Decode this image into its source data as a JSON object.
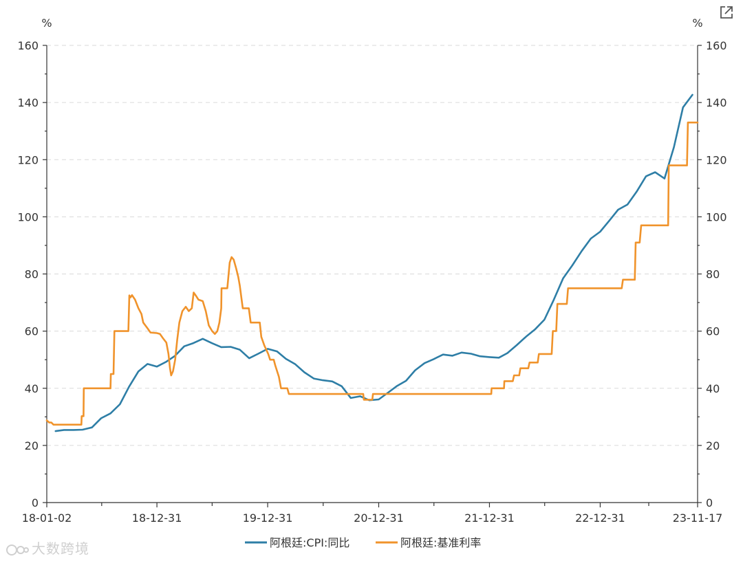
{
  "chart_data": {
    "type": "line",
    "title": "",
    "y_unit_left": "%",
    "y_unit_right": "%",
    "ylim": [
      0,
      160
    ],
    "yticks": [
      0,
      20,
      40,
      60,
      80,
      100,
      120,
      140,
      160
    ],
    "ytick_labels": [
      "0",
      "20",
      "40",
      "60",
      "80",
      "100",
      "120",
      "140",
      "160"
    ],
    "xlim": [
      "2018-01-02",
      "2023-11-17"
    ],
    "xticks": [
      "2018-01-02",
      "2018-12-31",
      "2019-12-31",
      "2020-12-31",
      "2021-12-31",
      "2022-12-31",
      "2023-11-17"
    ],
    "xtick_labels": [
      "18-01-02",
      "18-12-31",
      "19-12-31",
      "20-12-31",
      "21-12-31",
      "22-12-31",
      "23-11-17"
    ],
    "grid": true,
    "legend_position": "bottom",
    "series": [
      {
        "name": "阿根廷:CPI:同比",
        "color": "#2e7ea6",
        "points": [
          [
            "2018-01-31",
            25.0
          ],
          [
            "2018-02-28",
            25.4
          ],
          [
            "2018-03-31",
            25.4
          ],
          [
            "2018-04-30",
            25.5
          ],
          [
            "2018-05-31",
            26.3
          ],
          [
            "2018-06-30",
            29.5
          ],
          [
            "2018-07-31",
            31.2
          ],
          [
            "2018-08-31",
            34.4
          ],
          [
            "2018-09-30",
            40.5
          ],
          [
            "2018-10-31",
            45.9
          ],
          [
            "2018-11-30",
            48.5
          ],
          [
            "2018-12-31",
            47.6
          ],
          [
            "2019-01-31",
            49.3
          ],
          [
            "2019-02-28",
            51.3
          ],
          [
            "2019-03-31",
            54.7
          ],
          [
            "2019-04-30",
            55.8
          ],
          [
            "2019-05-31",
            57.3
          ],
          [
            "2019-06-30",
            55.8
          ],
          [
            "2019-07-31",
            54.4
          ],
          [
            "2019-08-31",
            54.5
          ],
          [
            "2019-09-30",
            53.5
          ],
          [
            "2019-10-31",
            50.5
          ],
          [
            "2019-11-30",
            52.1
          ],
          [
            "2019-12-31",
            53.8
          ],
          [
            "2020-01-31",
            52.9
          ],
          [
            "2020-02-29",
            50.3
          ],
          [
            "2020-03-31",
            48.4
          ],
          [
            "2020-04-30",
            45.6
          ],
          [
            "2020-05-31",
            43.4
          ],
          [
            "2020-06-30",
            42.8
          ],
          [
            "2020-07-31",
            42.4
          ],
          [
            "2020-08-31",
            40.7
          ],
          [
            "2020-09-30",
            36.6
          ],
          [
            "2020-10-31",
            37.2
          ],
          [
            "2020-11-30",
            35.8
          ],
          [
            "2020-12-31",
            36.1
          ],
          [
            "2021-01-31",
            38.5
          ],
          [
            "2021-02-28",
            40.7
          ],
          [
            "2021-03-31",
            42.6
          ],
          [
            "2021-04-30",
            46.3
          ],
          [
            "2021-05-31",
            48.8
          ],
          [
            "2021-06-30",
            50.2
          ],
          [
            "2021-07-31",
            51.8
          ],
          [
            "2021-08-31",
            51.4
          ],
          [
            "2021-09-30",
            52.5
          ],
          [
            "2021-10-31",
            52.1
          ],
          [
            "2021-11-30",
            51.2
          ],
          [
            "2021-12-31",
            50.9
          ],
          [
            "2022-01-31",
            50.7
          ],
          [
            "2022-02-28",
            52.3
          ],
          [
            "2022-03-31",
            55.1
          ],
          [
            "2022-04-30",
            58.0
          ],
          [
            "2022-05-31",
            60.7
          ],
          [
            "2022-06-30",
            64.0
          ],
          [
            "2022-07-31",
            71.0
          ],
          [
            "2022-08-31",
            78.5
          ],
          [
            "2022-09-30",
            83.0
          ],
          [
            "2022-10-31",
            88.0
          ],
          [
            "2022-11-30",
            92.4
          ],
          [
            "2022-12-31",
            94.8
          ],
          [
            "2023-01-31",
            98.8
          ],
          [
            "2023-02-28",
            102.5
          ],
          [
            "2023-03-31",
            104.3
          ],
          [
            "2023-04-30",
            108.8
          ],
          [
            "2023-05-31",
            114.2
          ],
          [
            "2023-06-30",
            115.6
          ],
          [
            "2023-07-31",
            113.4
          ],
          [
            "2023-08-31",
            124.4
          ],
          [
            "2023-09-30",
            138.3
          ],
          [
            "2023-10-31",
            142.7
          ]
        ]
      },
      {
        "name": "阿根廷:基准利率",
        "color": "#f0932b",
        "points": [
          [
            "2018-01-02",
            28.75
          ],
          [
            "2018-01-10",
            28.0
          ],
          [
            "2018-01-17",
            28.0
          ],
          [
            "2018-01-24",
            27.25
          ],
          [
            "2018-04-26",
            27.25
          ],
          [
            "2018-04-27",
            30.25
          ],
          [
            "2018-05-03",
            30.25
          ],
          [
            "2018-05-04",
            40.0
          ],
          [
            "2018-07-31",
            40.0
          ],
          [
            "2018-08-01",
            45.0
          ],
          [
            "2018-08-10",
            45.0
          ],
          [
            "2018-08-13",
            60.0
          ],
          [
            "2018-09-28",
            60.0
          ],
          [
            "2018-10-01",
            72.5
          ],
          [
            "2018-10-05",
            71.8
          ],
          [
            "2018-10-10",
            72.6
          ],
          [
            "2018-10-20",
            71.0
          ],
          [
            "2018-10-31",
            68.0
          ],
          [
            "2018-11-10",
            66.0
          ],
          [
            "2018-11-16",
            63.0
          ],
          [
            "2018-11-30",
            61.0
          ],
          [
            "2018-12-10",
            59.5
          ],
          [
            "2018-12-31",
            59.3
          ],
          [
            "2019-01-10",
            59.0
          ],
          [
            "2019-01-20",
            57.5
          ],
          [
            "2019-01-31",
            56.0
          ],
          [
            "2019-02-07",
            52.0
          ],
          [
            "2019-02-12",
            47.0
          ],
          [
            "2019-02-16",
            44.5
          ],
          [
            "2019-02-22",
            46.0
          ],
          [
            "2019-03-01",
            50.0
          ],
          [
            "2019-03-08",
            57.0
          ],
          [
            "2019-03-15",
            63.0
          ],
          [
            "2019-03-25",
            67.0
          ],
          [
            "2019-04-05",
            68.5
          ],
          [
            "2019-04-15",
            67.0
          ],
          [
            "2019-04-25",
            68.0
          ],
          [
            "2019-05-01",
            73.5
          ],
          [
            "2019-05-08",
            72.5
          ],
          [
            "2019-05-17",
            71.0
          ],
          [
            "2019-05-31",
            70.5
          ],
          [
            "2019-06-10",
            67.0
          ],
          [
            "2019-06-20",
            62.0
          ],
          [
            "2019-07-01",
            60.0
          ],
          [
            "2019-07-10",
            59.0
          ],
          [
            "2019-07-18",
            60.0
          ],
          [
            "2019-07-25",
            63.0
          ],
          [
            "2019-07-31",
            68.0
          ],
          [
            "2019-08-01",
            75.0
          ],
          [
            "2019-08-20",
            75.0
          ],
          [
            "2019-08-28",
            84.0
          ],
          [
            "2019-09-03",
            85.9
          ],
          [
            "2019-09-10",
            85.0
          ],
          [
            "2019-09-18",
            82.0
          ],
          [
            "2019-09-25",
            79.0
          ],
          [
            "2019-09-30",
            76.0
          ],
          [
            "2019-10-05",
            72.0
          ],
          [
            "2019-10-10",
            68.0
          ],
          [
            "2019-10-30",
            68.0
          ],
          [
            "2019-11-05",
            63.0
          ],
          [
            "2019-12-05",
            63.0
          ],
          [
            "2019-12-10",
            58.0
          ],
          [
            "2019-12-20",
            55.0
          ],
          [
            "2020-01-02",
            52.0
          ],
          [
            "2020-01-08",
            50.0
          ],
          [
            "2020-01-20",
            50.0
          ],
          [
            "2020-01-25",
            48.0
          ],
          [
            "2020-02-06",
            44.0
          ],
          [
            "2020-02-13",
            40.0
          ],
          [
            "2020-03-05",
            40.0
          ],
          [
            "2020-03-10",
            38.0
          ],
          [
            "2020-11-10",
            38.0
          ],
          [
            "2020-11-12",
            36.0
          ],
          [
            "2020-12-10",
            36.0
          ],
          [
            "2020-12-12",
            38.0
          ],
          [
            "2022-01-06",
            38.0
          ],
          [
            "2022-01-07",
            40.0
          ],
          [
            "2022-02-17",
            40.0
          ],
          [
            "2022-02-18",
            42.5
          ],
          [
            "2022-03-18",
            42.5
          ],
          [
            "2022-03-22",
            44.5
          ],
          [
            "2022-04-08",
            44.5
          ],
          [
            "2022-04-12",
            47.0
          ],
          [
            "2022-05-08",
            47.0
          ],
          [
            "2022-05-12",
            49.0
          ],
          [
            "2022-06-08",
            49.0
          ],
          [
            "2022-06-12",
            52.0
          ],
          [
            "2022-07-24",
            52.0
          ],
          [
            "2022-07-28",
            60.0
          ],
          [
            "2022-08-08",
            60.0
          ],
          [
            "2022-08-12",
            69.5
          ],
          [
            "2022-09-12",
            69.5
          ],
          [
            "2022-09-16",
            75.0
          ],
          [
            "2023-03-12",
            75.0
          ],
          [
            "2023-03-16",
            78.0
          ],
          [
            "2023-04-24",
            78.0
          ],
          [
            "2023-04-27",
            91.0
          ],
          [
            "2023-05-10",
            91.0
          ],
          [
            "2023-05-15",
            97.0
          ],
          [
            "2023-08-12",
            97.0
          ],
          [
            "2023-08-14",
            118.0
          ],
          [
            "2023-10-13",
            118.0
          ],
          [
            "2023-10-16",
            133.0
          ],
          [
            "2023-11-17",
            133.0
          ]
        ]
      }
    ]
  },
  "ui": {
    "export_icon": "external-link-icon",
    "watermark_text": "大数跨境"
  }
}
